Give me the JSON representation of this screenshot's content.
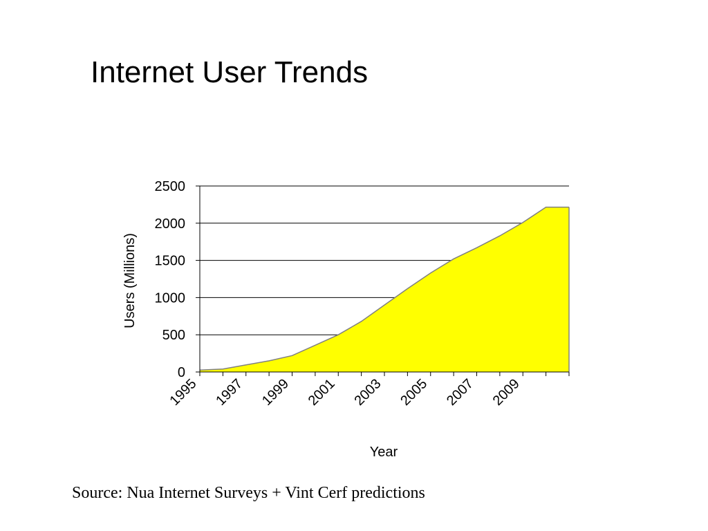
{
  "slide": {
    "title": "Internet User Trends",
    "source": "Source: Nua Internet Surveys + Vint Cerf predictions"
  },
  "chart_data": {
    "type": "area",
    "title": "",
    "xlabel": "Year",
    "ylabel": "Users (Millions)",
    "x": [
      1995,
      1996,
      1997,
      1998,
      1999,
      2000,
      2001,
      2002,
      2003,
      2004,
      2005,
      2006,
      2007,
      2008,
      2009,
      2010
    ],
    "values": [
      26,
      40,
      95,
      150,
      220,
      360,
      500,
      680,
      900,
      1120,
      1330,
      1520,
      1670,
      1830,
      2010,
      2215
    ],
    "ylim": [
      0,
      2500
    ],
    "yticks": [
      0,
      500,
      1000,
      1500,
      2000,
      2500
    ],
    "xtick_labels": [
      "1995",
      "1997",
      "1999",
      "2001",
      "2003",
      "2005",
      "2007",
      "2009"
    ],
    "grid": true,
    "fill_color": "#FFFF00",
    "line_color": "#808080",
    "legend": "none"
  }
}
